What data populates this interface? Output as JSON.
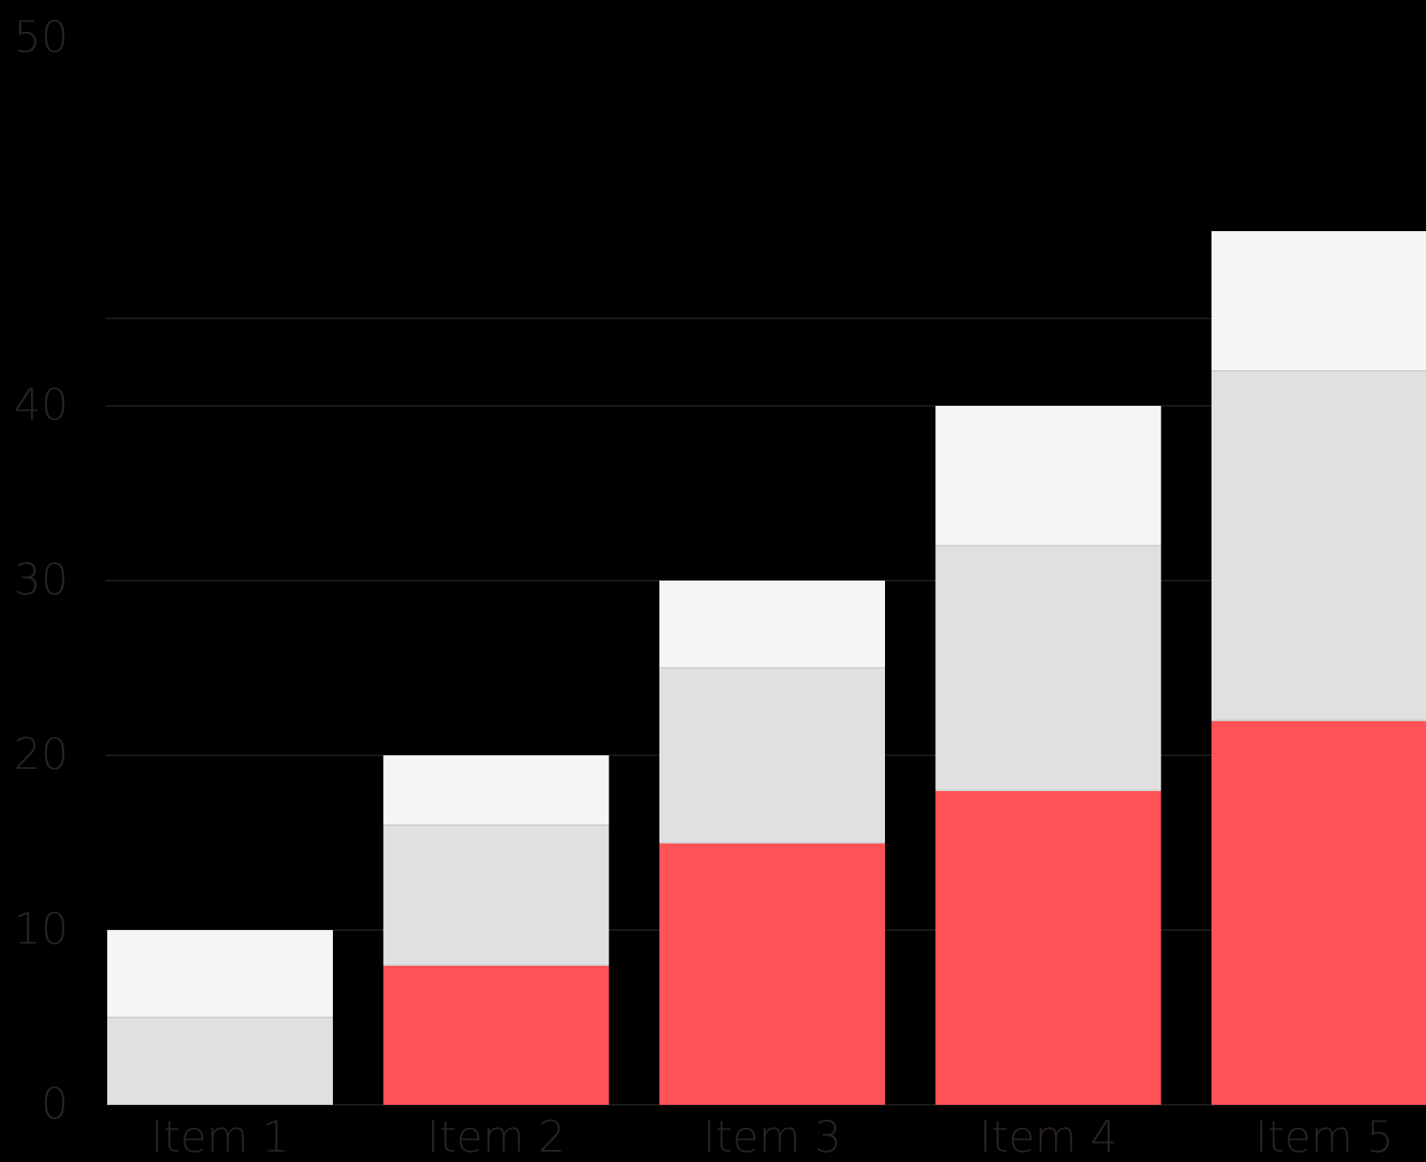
{
  "chart_data": {
    "type": "bar",
    "stacked": true,
    "categories": [
      "Item 1",
      "Item 2",
      "Item 3",
      "Item 4",
      "Item 5"
    ],
    "series": [
      {
        "values": [
          0,
          8,
          15,
          18,
          22
        ],
        "color": "#ff5257"
      },
      {
        "values": [
          5,
          8,
          10,
          14,
          20
        ],
        "color": "#e0e0e0"
      },
      {
        "values": [
          5,
          4,
          5,
          8,
          8
        ],
        "color": "#f5f5f5"
      }
    ],
    "y_ticks": [
      0,
      10,
      20,
      30,
      40,
      50
    ],
    "ylim": [
      0,
      50
    ],
    "grid": true,
    "background": "#000000"
  }
}
